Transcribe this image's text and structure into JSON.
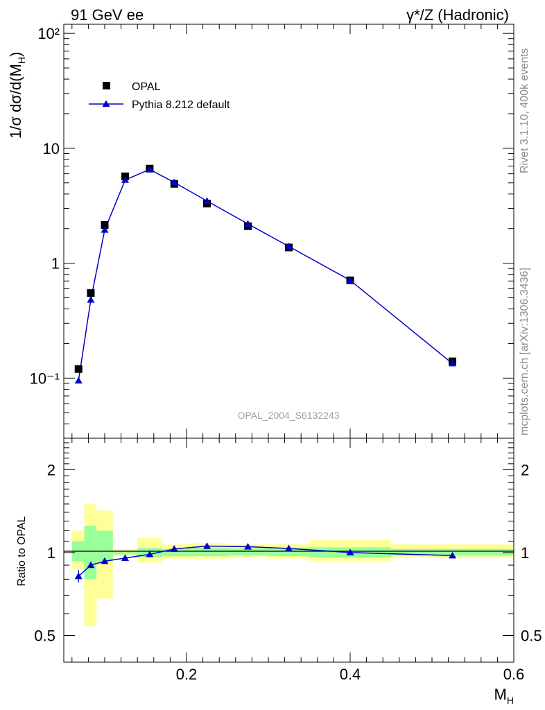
{
  "header": {
    "left": "91 GeV ee",
    "right": "γ*/Z (Hadronic)"
  },
  "side_labels": {
    "rivet": "Rivet 3.1.10,  400k events",
    "mcplots": "mcplots.cern.ch [arXiv:1306.3436]"
  },
  "analysis_id": "OPAL_2004_S6132243",
  "colors": {
    "mc": "#0000cc",
    "data": "#000000",
    "band_inner": "#99ff99",
    "band_outer": "#ffff99",
    "side_text": "#8c8c8c",
    "analysis_text": "#a0a0a0"
  },
  "chart_data": [
    {
      "type": "scatter",
      "name": "main",
      "title": "91 GeV ee",
      "ylabel": "1/σ dσ/d(M_H)",
      "xlabel": "",
      "yscale": "log",
      "xlim": [
        0.05,
        0.6
      ],
      "ylim": [
        0.03,
        120
      ],
      "y_ticks": [
        {
          "value": 100,
          "label": "10²"
        },
        {
          "value": 10,
          "label": "10"
        },
        {
          "value": 1,
          "label": "1"
        },
        {
          "value": 0.1,
          "label": "10⁻¹"
        }
      ],
      "legend": [
        "OPAL",
        "Pythia 8.212 default"
      ],
      "legend_position": "top-left",
      "series": [
        {
          "name": "OPAL",
          "marker": "square",
          "x": [
            0.068,
            0.083,
            0.1,
            0.125,
            0.155,
            0.185,
            0.225,
            0.275,
            0.325,
            0.4,
            0.525
          ],
          "y": [
            0.12,
            0.55,
            2.15,
            5.7,
            6.65,
            4.9,
            3.3,
            2.1,
            1.37,
            0.71,
            0.14
          ]
        },
        {
          "name": "Pythia 8.212 default",
          "marker": "triangle",
          "x": [
            0.068,
            0.083,
            0.1,
            0.125,
            0.155,
            0.185,
            0.225,
            0.275,
            0.325,
            0.4,
            0.525
          ],
          "y": [
            0.095,
            0.48,
            1.95,
            5.3,
            6.55,
            5.05,
            3.48,
            2.2,
            1.4,
            0.71,
            0.134
          ]
        }
      ]
    },
    {
      "type": "line",
      "name": "ratio",
      "ylabel": "Ratio to OPAL",
      "xlabel": "M_H",
      "yscale": "log",
      "xlim": [
        0.05,
        0.6
      ],
      "ylim": [
        0.4,
        2.6
      ],
      "x_ticks": [
        {
          "value": 0.2,
          "label": "0.2"
        },
        {
          "value": 0.4,
          "label": "0.4"
        },
        {
          "value": 0.6,
          "label": "0.6"
        }
      ],
      "y_ticks": [
        {
          "value": 2,
          "label": "2"
        },
        {
          "value": 1,
          "label": "1"
        },
        {
          "value": 0.5,
          "label": "0.5"
        }
      ],
      "bands": [
        {
          "x0": 0.06,
          "x1": 0.075,
          "inner": [
            0.93,
            1.1
          ],
          "outer": [
            0.87,
            1.2
          ]
        },
        {
          "x0": 0.075,
          "x1": 0.09,
          "inner": [
            0.8,
            1.25
          ],
          "outer": [
            0.54,
            1.5
          ]
        },
        {
          "x0": 0.09,
          "x1": 0.11,
          "inner": [
            0.93,
            1.2
          ],
          "outer": [
            0.68,
            1.42
          ]
        },
        {
          "x0": 0.11,
          "x1": 0.14,
          "inner": [
            0.985,
            1.015
          ],
          "outer": [
            0.97,
            1.03
          ]
        },
        {
          "x0": 0.14,
          "x1": 0.17,
          "inner": [
            0.96,
            1.04
          ],
          "outer": [
            0.92,
            1.13
          ]
        },
        {
          "x0": 0.17,
          "x1": 0.2,
          "inner": [
            0.97,
            1.03
          ],
          "outer": [
            0.95,
            1.07
          ]
        },
        {
          "x0": 0.2,
          "x1": 0.25,
          "inner": [
            0.97,
            1.04
          ],
          "outer": [
            0.95,
            1.08
          ]
        },
        {
          "x0": 0.25,
          "x1": 0.3,
          "inner": [
            0.975,
            1.035
          ],
          "outer": [
            0.96,
            1.07
          ]
        },
        {
          "x0": 0.3,
          "x1": 0.35,
          "inner": [
            0.97,
            1.04
          ],
          "outer": [
            0.95,
            1.07
          ]
        },
        {
          "x0": 0.35,
          "x1": 0.45,
          "inner": [
            0.96,
            1.045
          ],
          "outer": [
            0.93,
            1.11
          ]
        },
        {
          "x0": 0.45,
          "x1": 0.6,
          "inner": [
            0.975,
            1.03
          ],
          "outer": [
            0.955,
            1.07
          ]
        }
      ],
      "series": [
        {
          "name": "Pythia 8.212 default",
          "x": [
            0.068,
            0.083,
            0.1,
            0.125,
            0.155,
            0.185,
            0.225,
            0.275,
            0.325,
            0.4,
            0.525
          ],
          "y": [
            0.82,
            0.9,
            0.93,
            0.955,
            0.985,
            1.03,
            1.055,
            1.05,
            1.035,
            1.0,
            0.975
          ]
        }
      ]
    }
  ]
}
